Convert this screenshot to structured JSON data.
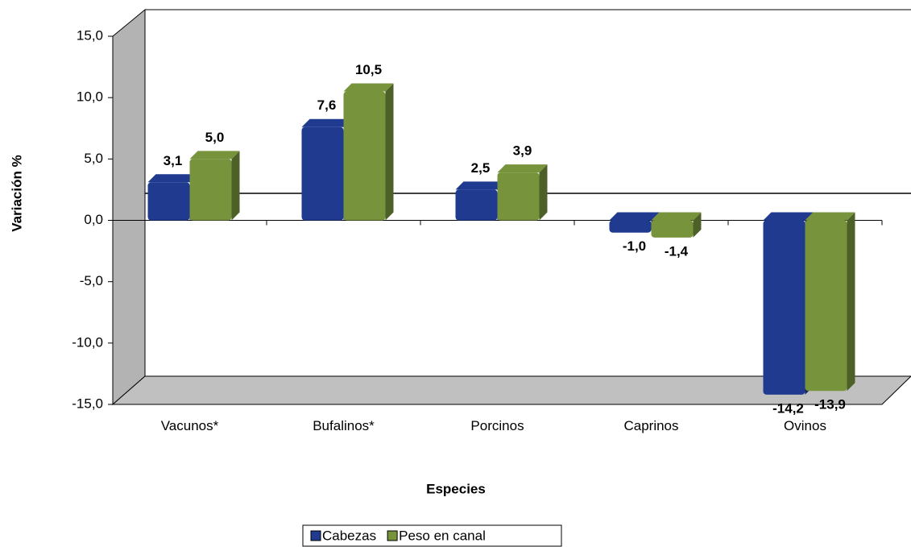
{
  "chart_data": {
    "type": "bar",
    "y_label": "Variación %",
    "x_label": "Especies",
    "categories": [
      "Vacunos*",
      "Bufalinos*",
      "Porcinos",
      "Caprinos",
      "Ovinos"
    ],
    "series": [
      {
        "name": "Cabezas",
        "color": "#1f3a8f",
        "values": [
          3.1,
          7.6,
          2.5,
          -1.0,
          -14.2
        ],
        "value_labels": [
          "3,1",
          "7,6",
          "2,5",
          "-1,0",
          "-14,2"
        ]
      },
      {
        "name": "Peso en canal",
        "color": "#77933c",
        "values": [
          5.0,
          10.5,
          3.9,
          -1.4,
          -13.9
        ],
        "value_labels": [
          "5,0",
          "10,5",
          "3,9",
          "-1,4",
          "-13,9"
        ]
      }
    ],
    "ylim": [
      -15,
      15
    ],
    "yticks": [
      {
        "value": -15,
        "label": "-15,0"
      },
      {
        "value": -10,
        "label": "-10,0"
      },
      {
        "value": -5,
        "label": "-5,0"
      },
      {
        "value": 0,
        "label": "0,0"
      },
      {
        "value": 5,
        "label": "5,0"
      },
      {
        "value": 10,
        "label": "10,0"
      },
      {
        "value": 15,
        "label": "15,0"
      }
    ],
    "legend": "bottom"
  }
}
